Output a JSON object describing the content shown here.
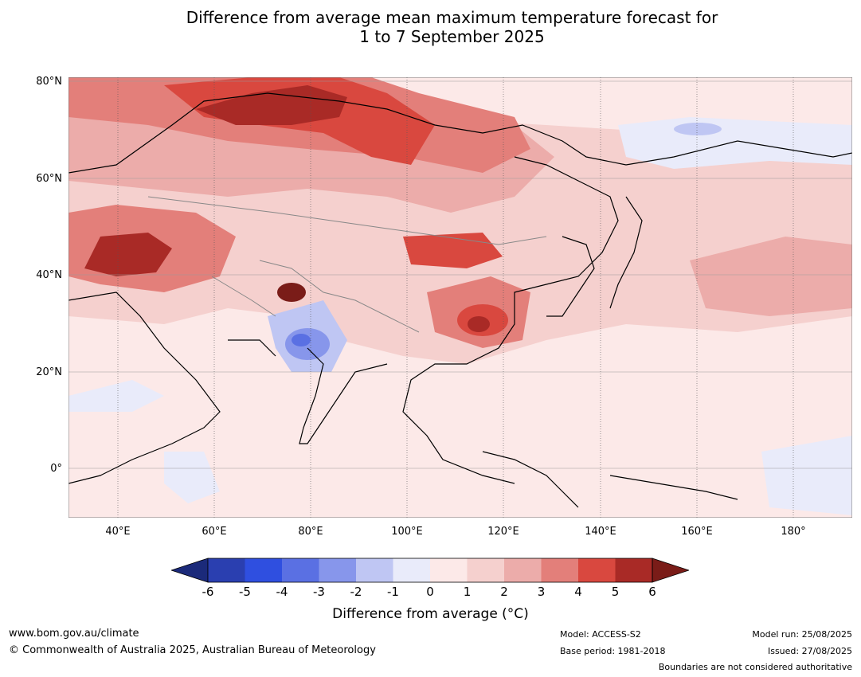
{
  "title": {
    "line1": "Difference from average mean maximum temperature forecast for",
    "line2": "1 to 7 September 2025"
  },
  "map": {
    "lat_labels": [
      "80°N",
      "60°N",
      "40°N",
      "20°N",
      "0°"
    ],
    "lon_labels": [
      "40°E",
      "60°E",
      "80°E",
      "100°E",
      "120°E",
      "140°E",
      "160°E",
      "180°"
    ],
    "background_color": "#fce9e8",
    "land_outline_color": "#000000",
    "border_color": "#888888"
  },
  "colorbar": {
    "ticks": [
      "-6",
      "-5",
      "-4",
      "-3",
      "-2",
      "-1",
      "0",
      "1",
      "2",
      "3",
      "4",
      "5",
      "6"
    ],
    "colors": [
      "#1b2a7a",
      "#2a3fb0",
      "#2f4fe0",
      "#5a70e3",
      "#8796eb",
      "#bfc6f3",
      "#e9ebfa",
      "#fce9e8",
      "#f5d0ce",
      "#ecacaa",
      "#e37f7a",
      "#d9483f",
      "#a92a26",
      "#7a1c18"
    ],
    "label": "Difference from average (°C)"
  },
  "footer": {
    "website": "www.bom.gov.au/climate",
    "copyright": "© Commonwealth of Australia 2025, Australian Bureau of Meteorology",
    "model": "Model: ACCESS-S2",
    "base_period": "Base period: 1981-2018",
    "model_run": "Model run: 25/08/2025",
    "issued": "Issued: 27/08/2025",
    "disclaimer": "Boundaries are not considered authoritative"
  }
}
